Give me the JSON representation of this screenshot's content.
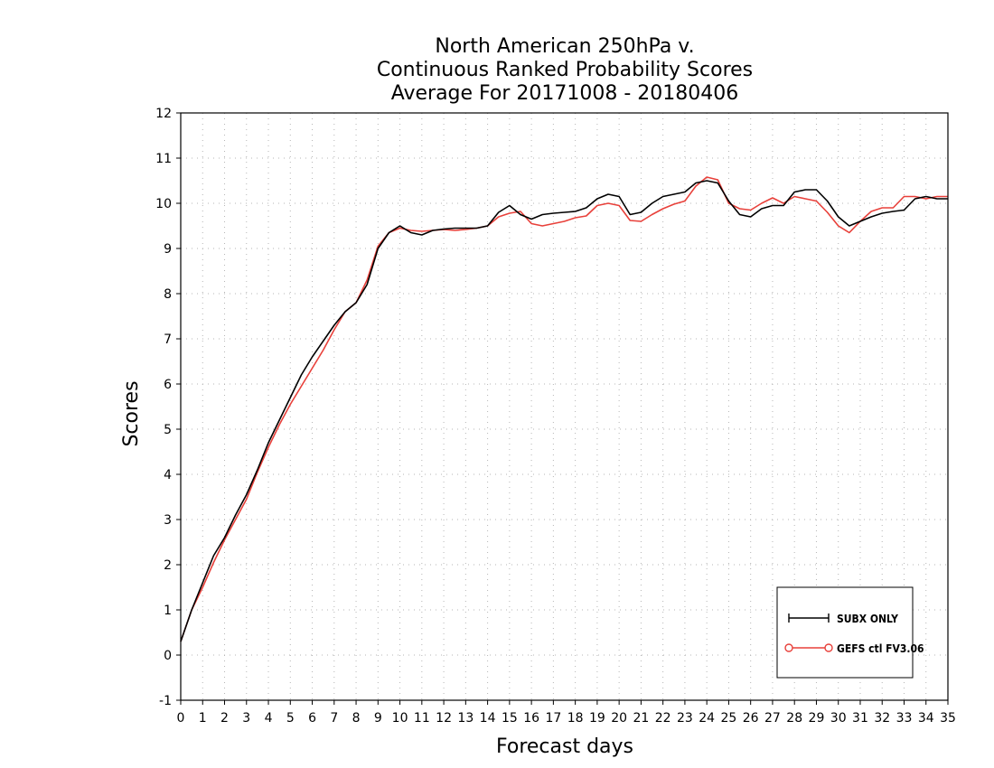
{
  "chart_data": {
    "type": "line",
    "title_lines": [
      "North American 250hPa v.",
      "Continuous Ranked Probability Scores",
      "Average For 20171008 - 20180406"
    ],
    "xlabel": "Forecast days",
    "ylabel": "Scores",
    "xlim": [
      0,
      35
    ],
    "ylim": [
      -1,
      12
    ],
    "x_ticks": [
      0,
      1,
      2,
      3,
      4,
      5,
      6,
      7,
      8,
      9,
      10,
      11,
      12,
      13,
      14,
      15,
      16,
      17,
      18,
      19,
      20,
      21,
      22,
      23,
      24,
      25,
      26,
      27,
      28,
      29,
      30,
      31,
      32,
      33,
      34,
      35
    ],
    "y_ticks": [
      -1,
      0,
      1,
      2,
      3,
      4,
      5,
      6,
      7,
      8,
      9,
      10,
      11,
      12
    ],
    "grid": true,
    "legend_position": "bottom-right",
    "x": [
      0,
      0.5,
      1,
      1.5,
      2,
      2.5,
      3,
      3.5,
      4,
      4.5,
      5,
      5.5,
      6,
      6.5,
      7,
      7.5,
      8,
      8.5,
      9,
      9.5,
      10,
      10.5,
      11,
      11.5,
      12,
      12.5,
      13,
      13.5,
      14,
      14.5,
      15,
      15.5,
      16,
      16.5,
      17,
      17.5,
      18,
      18.5,
      19,
      19.5,
      20,
      20.5,
      21,
      21.5,
      22,
      22.5,
      23,
      23.5,
      24,
      24.5,
      25,
      25.5,
      26,
      26.5,
      27,
      27.5,
      28,
      28.5,
      29,
      29.5,
      30,
      30.5,
      31,
      31.5,
      32,
      32.5,
      33,
      33.5,
      34,
      34.5,
      35
    ],
    "series": [
      {
        "name": "SUBX ONLY",
        "color": "#000000",
        "marker": "plus",
        "values": [
          0.3,
          1.0,
          1.6,
          2.2,
          2.6,
          3.1,
          3.55,
          4.1,
          4.7,
          5.2,
          5.7,
          6.2,
          6.6,
          6.95,
          7.3,
          7.6,
          7.8,
          8.2,
          9.0,
          9.35,
          9.5,
          9.35,
          9.3,
          9.4,
          9.43,
          9.45,
          9.45,
          9.45,
          9.5,
          9.8,
          9.95,
          9.75,
          9.65,
          9.75,
          9.78,
          9.8,
          9.82,
          9.9,
          10.1,
          10.2,
          10.15,
          9.75,
          9.8,
          10.0,
          10.15,
          10.2,
          10.25,
          10.45,
          10.5,
          10.45,
          10.05,
          9.75,
          9.7,
          9.88,
          9.95,
          9.95,
          10.25,
          10.3,
          10.3,
          10.05,
          9.7,
          9.5,
          9.6,
          9.7,
          9.78,
          9.82,
          9.85,
          10.1,
          10.15,
          10.1,
          10.1
        ]
      },
      {
        "name": "GEFS ctl FV3.06",
        "color": "#e8403a",
        "marker": "circle",
        "values": [
          0.3,
          1.0,
          1.5,
          2.05,
          2.55,
          3.0,
          3.45,
          4.05,
          4.6,
          5.1,
          5.55,
          5.95,
          6.35,
          6.75,
          7.2,
          7.6,
          7.8,
          8.3,
          9.05,
          9.35,
          9.45,
          9.4,
          9.38,
          9.4,
          9.42,
          9.4,
          9.42,
          9.45,
          9.5,
          9.7,
          9.78,
          9.82,
          9.55,
          9.5,
          9.55,
          9.6,
          9.68,
          9.72,
          9.95,
          10.0,
          9.95,
          9.62,
          9.6,
          9.75,
          9.88,
          9.98,
          10.05,
          10.38,
          10.58,
          10.52,
          10.0,
          9.88,
          9.85,
          10.0,
          10.12,
          10.0,
          10.15,
          10.1,
          10.05,
          9.8,
          9.5,
          9.35,
          9.6,
          9.82,
          9.9,
          9.9,
          10.15,
          10.15,
          10.1,
          10.15,
          10.15
        ]
      }
    ]
  }
}
